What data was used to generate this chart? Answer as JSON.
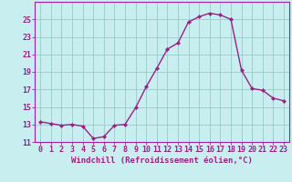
{
  "x": [
    0,
    1,
    2,
    3,
    4,
    5,
    6,
    7,
    8,
    9,
    10,
    11,
    12,
    13,
    14,
    15,
    16,
    17,
    18,
    19,
    20,
    21,
    22,
    23
  ],
  "y": [
    13.3,
    13.1,
    12.9,
    13.0,
    12.8,
    11.4,
    11.6,
    12.9,
    13.0,
    14.9,
    17.3,
    19.4,
    21.6,
    22.3,
    24.7,
    25.3,
    25.7,
    25.5,
    25.0,
    19.2,
    17.1,
    16.9,
    16.0,
    15.7
  ],
  "line_color": "#992288",
  "marker": "D",
  "marker_size": 2.0,
  "bg_color": "#c8eef0",
  "grid_color": "#99cccc",
  "xlabel": "Windchill (Refroidissement éolien,°C)",
  "ylim": [
    11,
    27
  ],
  "xlim": [
    -0.5,
    23.5
  ],
  "yticks": [
    11,
    13,
    15,
    17,
    19,
    21,
    23,
    25
  ],
  "xtick_labels": [
    "0",
    "1",
    "2",
    "3",
    "4",
    "5",
    "6",
    "7",
    "8",
    "9",
    "10",
    "11",
    "12",
    "13",
    "14",
    "15",
    "16",
    "17",
    "18",
    "19",
    "20",
    "21",
    "22",
    "23"
  ],
  "xlabel_fontsize": 6.5,
  "tick_fontsize": 6.0,
  "line_width": 1.0,
  "spine_color": "#9922aa"
}
